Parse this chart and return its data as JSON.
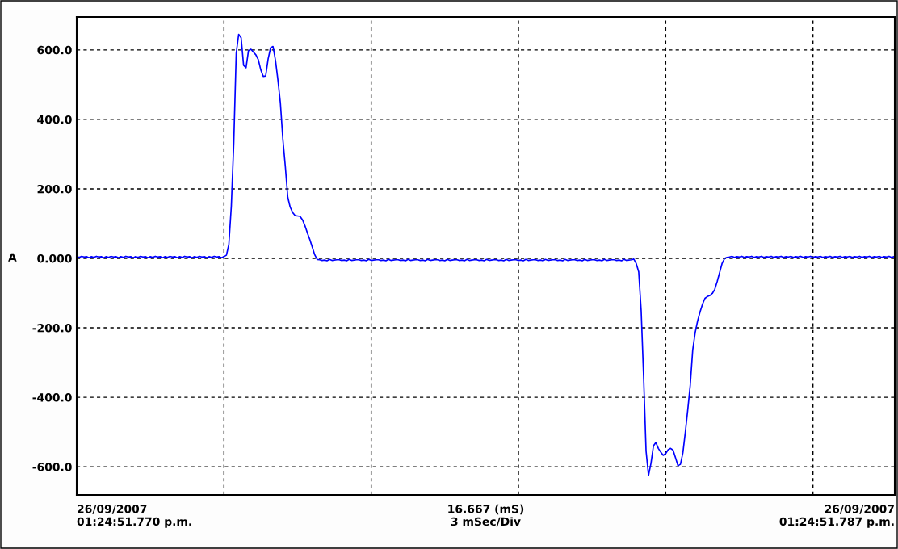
{
  "chart_data": {
    "type": "line",
    "ylabel": "A",
    "annotations": [
      "26/09/2007\n01:24:51.770 p.m.",
      "16.667 (mS)\n3 mSec/Div",
      "26/09/2007\n01:24:51.787 p.m."
    ],
    "categories": [
      null,
      null,
      null,
      null,
      null,
      null,
      null,
      null,
      null,
      null,
      null,
      null,
      null,
      null,
      null,
      null,
      null,
      null,
      null,
      null,
      null,
      null,
      null,
      null,
      null,
      null,
      null,
      null,
      null,
      null,
      null,
      null,
      null,
      null,
      null,
      null,
      null,
      null,
      null,
      null,
      null,
      null,
      null,
      null,
      null,
      null,
      null,
      null,
      null,
      null,
      null,
      null,
      null,
      null,
      null,
      null,
      null,
      null,
      null,
      null,
      null,
      null,
      null,
      null,
      null,
      null,
      null,
      null,
      null,
      null,
      null,
      null,
      null,
      null,
      null,
      null,
      null,
      null,
      null,
      null,
      null,
      null,
      null,
      null,
      null,
      null,
      null,
      null,
      null,
      null,
      null,
      null,
      null,
      null,
      null,
      null,
      null,
      null,
      null,
      null,
      null,
      null,
      null,
      null,
      null,
      null,
      null,
      null,
      null,
      null,
      null,
      null,
      null,
      null,
      null,
      null,
      null,
      null,
      null,
      null,
      null,
      null,
      null,
      null,
      null,
      null,
      null,
      null,
      null,
      null,
      null,
      null,
      null,
      null,
      null,
      null,
      null,
      null,
      null,
      null,
      null,
      null,
      null,
      null,
      null,
      null,
      null,
      null,
      null,
      null,
      null,
      null,
      null,
      null,
      null,
      null,
      null,
      null,
      null,
      null,
      null,
      null,
      null,
      null,
      null,
      null,
      null,
      null,
      null,
      null,
      null,
      null,
      null,
      null,
      null,
      null,
      null,
      null,
      null,
      null,
      null,
      null,
      null,
      null,
      null,
      null,
      null,
      null,
      null,
      null,
      null,
      null,
      null,
      null,
      null,
      null,
      null,
      null,
      null,
      null,
      null,
      null,
      null,
      null,
      null,
      null,
      null,
      null,
      null,
      null,
      null,
      null,
      null,
      null,
      null,
      null,
      null,
      null,
      null,
      null,
      null,
      null,
      null,
      null,
      null,
      null,
      null,
      null,
      null,
      null,
      null,
      null,
      null,
      null,
      null,
      null,
      null,
      null,
      null,
      null,
      null,
      null,
      null,
      null,
      null,
      null,
      null,
      null,
      null,
      null,
      null,
      null,
      null,
      null,
      null,
      null,
      null,
      null,
      null,
      null,
      null,
      null,
      null,
      null,
      null,
      null,
      null,
      null,
      null,
      null,
      null,
      null,
      null,
      null,
      null,
      null,
      null,
      null,
      null,
      null,
      null,
      null,
      null,
      null,
      null,
      null,
      null,
      null,
      null,
      null,
      null,
      null,
      null,
      null,
      null,
      null,
      null,
      null,
      null,
      null,
      null,
      null,
      null,
      null,
      null,
      null,
      null,
      null,
      null,
      null,
      null,
      null,
      null,
      null,
      null,
      null,
      null,
      null,
      null,
      null,
      null,
      null,
      null,
      null,
      null,
      null,
      null,
      null,
      null,
      null,
      null,
      null,
      null,
      null
    ],
    "ylim": [
      -681,
      695
    ],
    "yticks": [
      {
        "value": 600,
        "label": "600.0"
      },
      {
        "value": 400,
        "label": "400.0"
      },
      {
        "value": 200,
        "label": "200.0"
      },
      {
        "value": 0,
        "label": "0.000"
      },
      {
        "value": -200,
        "label": "-200.0"
      },
      {
        "value": -400,
        "label": "-400.0"
      },
      {
        "value": -600,
        "label": "-600.0"
      }
    ],
    "tick_labels": "y",
    "grid": true,
    "line_style": "solid",
    "marker": "none",
    "series": [
      {
        "color": "#0000ff",
        "values": [
          5,
          3,
          6,
          4,
          5,
          2,
          5,
          3,
          6,
          4,
          5,
          2,
          5,
          3,
          6,
          4,
          5,
          2,
          5,
          3,
          6,
          4,
          5,
          2,
          5,
          3,
          6,
          4,
          5,
          2,
          5,
          3,
          6,
          4,
          5,
          2,
          5,
          3,
          6,
          4,
          5,
          2,
          5,
          3,
          6,
          4,
          5,
          2,
          5,
          3,
          6,
          4,
          5,
          2,
          5,
          3,
          6,
          4,
          5,
          2,
          5,
          9,
          40,
          150,
          333,
          590,
          645,
          635,
          556,
          549,
          598,
          602,
          594,
          586,
          572,
          543,
          524,
          525,
          574,
          606,
          610,
          570,
          513,
          447,
          343,
          265,
          176,
          147,
          132,
          123,
          122,
          121,
          111,
          94,
          73,
          54,
          32,
          10,
          -3,
          -4,
          -6,
          -5,
          -7,
          -3,
          -6,
          -5,
          -4,
          -4,
          -6,
          -5,
          -7,
          -3,
          -6,
          -5,
          -4,
          -4,
          -6,
          -5,
          -7,
          -3,
          -6,
          -5,
          -4,
          -4,
          -6,
          -5,
          -7,
          -3,
          -6,
          -5,
          -4,
          -4,
          -6,
          -5,
          -7,
          -3,
          -6,
          -5,
          -4,
          -4,
          -6,
          -5,
          -7,
          -3,
          -6,
          -5,
          -4,
          -4,
          -6,
          -5,
          -7,
          -3,
          -6,
          -5,
          -4,
          -4,
          -6,
          -5,
          -7,
          -3,
          -6,
          -5,
          -4,
          -4,
          -6,
          -5,
          -7,
          -3,
          -6,
          -5,
          -4,
          -4,
          -6,
          -5,
          -7,
          -3,
          -6,
          -5,
          -4,
          -4,
          -6,
          -5,
          -7,
          -3,
          -6,
          -5,
          -4,
          -4,
          -6,
          -5,
          -7,
          -3,
          -6,
          -5,
          -4,
          -4,
          -6,
          -5,
          -7,
          -3,
          -6,
          -5,
          -4,
          -4,
          -6,
          -5,
          -7,
          -3,
          -6,
          -5,
          -4,
          -4,
          -6,
          -5,
          -7,
          -3,
          -6,
          -5,
          -4,
          -4,
          -6,
          -5,
          -7,
          -3,
          -6,
          -5,
          -4,
          -2,
          -15,
          -39,
          -150,
          -341,
          -555,
          -625,
          -590,
          -540,
          -530,
          -547,
          -558,
          -567,
          -562,
          -551,
          -547,
          -552,
          -574,
          -597,
          -593,
          -560,
          -500,
          -435,
          -365,
          -264,
          -214,
          -180,
          -154,
          -132,
          -115,
          -110,
          -107,
          -101,
          -89,
          -66,
          -40,
          -14,
          0,
          3,
          4,
          6,
          3,
          5,
          4,
          6,
          3,
          5,
          4,
          6,
          3,
          5,
          4,
          6,
          3,
          5,
          4,
          6,
          3,
          5,
          4,
          6,
          3,
          5,
          4,
          6,
          3,
          5,
          4,
          6,
          3,
          5,
          4,
          6,
          3,
          5,
          4,
          6,
          3,
          5,
          4,
          6,
          3,
          5,
          4,
          6,
          3,
          5,
          4,
          6,
          3,
          5,
          4,
          6,
          3,
          5,
          4,
          6,
          3,
          5,
          4,
          6,
          3,
          5,
          4,
          6,
          3,
          5
        ]
      }
    ]
  }
}
